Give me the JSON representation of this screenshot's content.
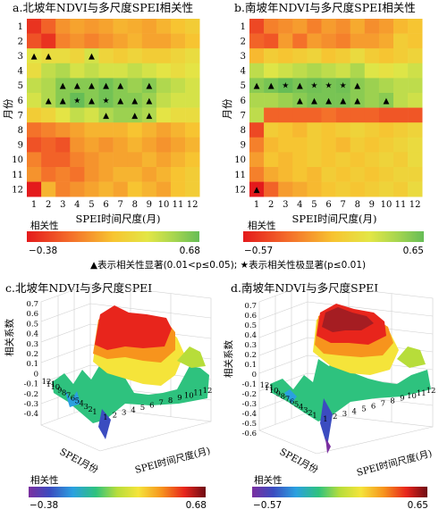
{
  "note": "▲表示相关性显著(0.01<p≤0.05); ★表示相关性极显著(p≤0.01)",
  "chart_data": [
    {
      "id": "a",
      "type": "heatmap",
      "title": "a.北坡年NDVI与多尺度SPEI相关性",
      "xlabel": "SPEI时间尺度(月)",
      "ylabel": "月份",
      "x": [
        "1",
        "2",
        "3",
        "4",
        "5",
        "6",
        "7",
        "8",
        "9",
        "10",
        "11",
        "12"
      ],
      "y": [
        "1",
        "2",
        "3",
        "4",
        "5",
        "6",
        "7",
        "8",
        "9",
        "10",
        "11",
        "12"
      ],
      "colorbar": {
        "label": "相关性",
        "min": -0.38,
        "max": 0.68,
        "min_label": "−0.38",
        "max_label": "0.68"
      },
      "values": [
        [
          -0.3,
          -0.15,
          0.0,
          0.05,
          0.02,
          0.05,
          0.1,
          0.08,
          0.05,
          0.1,
          0.15,
          0.2
        ],
        [
          -0.2,
          -0.3,
          -0.05,
          0.0,
          -0.05,
          0.0,
          0.05,
          0.1,
          0.05,
          0.05,
          0.1,
          0.15
        ],
        [
          0.35,
          0.3,
          0.3,
          0.25,
          0.4,
          0.25,
          0.2,
          0.25,
          0.2,
          0.2,
          0.25,
          0.3
        ],
        [
          0.3,
          0.45,
          0.5,
          0.4,
          0.45,
          0.4,
          0.4,
          0.45,
          0.4,
          0.35,
          0.3,
          0.35
        ],
        [
          0.45,
          0.5,
          0.6,
          0.6,
          0.6,
          0.65,
          0.6,
          0.55,
          0.6,
          0.5,
          0.45,
          0.4
        ],
        [
          0.4,
          0.5,
          0.6,
          0.68,
          0.6,
          0.65,
          0.6,
          0.6,
          0.55,
          0.45,
          0.4,
          0.4
        ],
        [
          0.2,
          0.25,
          0.35,
          0.45,
          0.4,
          0.5,
          0.55,
          0.55,
          0.5,
          0.35,
          0.3,
          0.3
        ],
        [
          -0.1,
          -0.05,
          0.0,
          0.05,
          0.1,
          0.1,
          0.1,
          0.15,
          0.1,
          0.05,
          0.1,
          0.15
        ],
        [
          -0.2,
          -0.15,
          -0.2,
          0.0,
          0.05,
          0.0,
          0.05,
          0.1,
          0.05,
          0.0,
          0.05,
          0.1
        ],
        [
          -0.05,
          -0.15,
          -0.15,
          -0.05,
          0.0,
          0.05,
          0.05,
          0.05,
          0.1,
          0.05,
          0.1,
          0.15
        ],
        [
          0.0,
          -0.1,
          -0.05,
          -0.1,
          0.0,
          0.05,
          0.1,
          0.1,
          0.05,
          0.1,
          0.15,
          0.2
        ],
        [
          -0.38,
          0.1,
          -0.05,
          0.0,
          0.05,
          0.1,
          0.05,
          0.15,
          0.1,
          0.05,
          0.15,
          0.2
        ]
      ],
      "markers": [
        {
          "month": "3",
          "scale": "1",
          "sym": "▲"
        },
        {
          "month": "3",
          "scale": "2",
          "sym": "▲"
        },
        {
          "month": "3",
          "scale": "5",
          "sym": "▲"
        },
        {
          "month": "5",
          "scale": "3",
          "sym": "▲"
        },
        {
          "month": "5",
          "scale": "4",
          "sym": "▲"
        },
        {
          "month": "5",
          "scale": "5",
          "sym": "▲"
        },
        {
          "month": "5",
          "scale": "6",
          "sym": "▲"
        },
        {
          "month": "5",
          "scale": "7",
          "sym": "▲"
        },
        {
          "month": "5",
          "scale": "9",
          "sym": "▲"
        },
        {
          "month": "6",
          "scale": "2",
          "sym": "▲"
        },
        {
          "month": "6",
          "scale": "3",
          "sym": "▲"
        },
        {
          "month": "6",
          "scale": "4",
          "sym": "★"
        },
        {
          "month": "6",
          "scale": "5",
          "sym": "▲"
        },
        {
          "month": "6",
          "scale": "6",
          "sym": "★"
        },
        {
          "month": "6",
          "scale": "7",
          "sym": "▲"
        },
        {
          "month": "6",
          "scale": "8",
          "sym": "▲"
        },
        {
          "month": "6",
          "scale": "9",
          "sym": "▲"
        },
        {
          "month": "7",
          "scale": "6",
          "sym": "▲"
        },
        {
          "month": "7",
          "scale": "8",
          "sym": "▲"
        },
        {
          "month": "7",
          "scale": "9",
          "sym": "▲"
        }
      ]
    },
    {
      "id": "b",
      "type": "heatmap",
      "title": "b.南坡年NDVI与多尺度SPEI相关性",
      "xlabel": "SPEI时间尺度(月)",
      "ylabel": "月份",
      "x": [
        "1",
        "2",
        "3",
        "4",
        "5",
        "6",
        "7",
        "8",
        "9",
        "10",
        "11",
        "12"
      ],
      "y": [
        "1",
        "2",
        "3",
        "4",
        "5",
        "6",
        "7",
        "8",
        "9",
        "10",
        "11",
        "12"
      ],
      "colorbar": {
        "label": "相关性",
        "min": -0.57,
        "max": 0.65,
        "min_label": "−0.57",
        "max_label": "0.65"
      },
      "values": [
        [
          -0.4,
          -0.2,
          -0.15,
          -0.1,
          -0.2,
          -0.1,
          -0.15,
          -0.05,
          -0.15,
          -0.1,
          0.0,
          0.05
        ],
        [
          -0.3,
          -0.35,
          -0.1,
          -0.25,
          -0.1,
          -0.15,
          -0.2,
          -0.1,
          -0.1,
          -0.05,
          0.1,
          0.05
        ],
        [
          0.0,
          0.1,
          0.05,
          0.1,
          0.15,
          0.05,
          0.1,
          0.2,
          0.1,
          0.05,
          0.1,
          0.15
        ],
        [
          0.4,
          0.3,
          0.35,
          0.4,
          0.45,
          0.4,
          0.35,
          0.45,
          0.3,
          0.25,
          0.3,
          0.35
        ],
        [
          0.55,
          0.6,
          0.65,
          0.6,
          0.62,
          0.6,
          0.62,
          0.55,
          0.5,
          0.45,
          0.4,
          0.4
        ],
        [
          0.45,
          0.45,
          0.5,
          0.55,
          0.6,
          0.6,
          0.6,
          0.55,
          0.5,
          0.55,
          0.4,
          0.35
        ],
        [
          0.4,
          -0.3,
          -0.3,
          -0.3,
          -0.3,
          -0.25,
          -0.3,
          -0.3,
          -0.3,
          -0.35,
          -0.35,
          -0.35
        ],
        [
          -0.4,
          0.1,
          0.05,
          0.0,
          0.1,
          0.05,
          0.1,
          0.15,
          0.1,
          0.05,
          0.1,
          0.15
        ],
        [
          -0.2,
          0.0,
          0.05,
          0.05,
          0.1,
          0.05,
          0.0,
          0.1,
          0.05,
          0.1,
          0.15,
          0.2
        ],
        [
          -0.1,
          0.05,
          0.0,
          0.05,
          0.1,
          0.05,
          0.1,
          0.05,
          0.1,
          0.15,
          0.1,
          0.2
        ],
        [
          -0.2,
          -0.05,
          0.0,
          0.05,
          0.0,
          0.1,
          0.05,
          0.1,
          0.05,
          0.1,
          0.15,
          0.15
        ],
        [
          -0.57,
          -0.3,
          -0.1,
          -0.05,
          0.0,
          0.05,
          0.1,
          0.05,
          0.1,
          0.15,
          0.1,
          0.2
        ]
      ],
      "markers": [
        {
          "month": "5",
          "scale": "1",
          "sym": "▲"
        },
        {
          "month": "5",
          "scale": "2",
          "sym": "▲"
        },
        {
          "month": "5",
          "scale": "3",
          "sym": "★"
        },
        {
          "month": "5",
          "scale": "4",
          "sym": "▲"
        },
        {
          "month": "5",
          "scale": "5",
          "sym": "★"
        },
        {
          "month": "5",
          "scale": "6",
          "sym": "★"
        },
        {
          "month": "5",
          "scale": "7",
          "sym": "★"
        },
        {
          "month": "5",
          "scale": "8",
          "sym": "▲"
        },
        {
          "month": "6",
          "scale": "4",
          "sym": "▲"
        },
        {
          "month": "6",
          "scale": "5",
          "sym": "▲"
        },
        {
          "month": "6",
          "scale": "6",
          "sym": "▲"
        },
        {
          "month": "6",
          "scale": "7",
          "sym": "▲"
        },
        {
          "month": "6",
          "scale": "8",
          "sym": "▲"
        },
        {
          "month": "6",
          "scale": "10",
          "sym": "▲"
        },
        {
          "month": "12",
          "scale": "1",
          "sym": "▲"
        }
      ]
    },
    {
      "id": "c",
      "type": "surface3d",
      "title": "c.北坡年NDVI与多尺度SPEI",
      "xlabel": "SPEI时间尺度(月)",
      "ylabel": "SPEI月份",
      "zlabel": "相关系数",
      "z_ticks": [
        "0.7",
        "0.6",
        "0.5",
        "0.4",
        "0.3",
        "0.2",
        "0.1",
        "0",
        "-0.1",
        "-0.2",
        "-0.3",
        "-0.4"
      ],
      "month_ticks": [
        "12",
        "11",
        "10",
        "9",
        "8",
        "7",
        "6",
        "5",
        "4",
        "3",
        "2",
        "1"
      ],
      "scale_ticks": [
        "1",
        "2",
        "3",
        "4",
        "5",
        "6",
        "7",
        "8",
        "9",
        "10",
        "11",
        "12"
      ],
      "colorbar": {
        "label": "相关性",
        "min": -0.38,
        "max": 0.68,
        "min_label": "−0.38",
        "max_label": "0.68"
      }
    },
    {
      "id": "d",
      "type": "surface3d",
      "title": "d.南坡年NDVI与多尺度SPEI",
      "xlabel": "SPEI时间尺度(月)",
      "ylabel": "SPEI月份",
      "zlabel": "相关系数",
      "z_ticks": [
        "0.7",
        "0.6",
        "0.5",
        "0.4",
        "0.3",
        "0.2",
        "0.1",
        "0",
        "-0.1",
        "-0.2",
        "-0.3",
        "-0.4",
        "-0.5",
        "-0.6"
      ],
      "month_ticks": [
        "12",
        "11",
        "10",
        "9",
        "8",
        "7",
        "6",
        "5",
        "4",
        "3",
        "2",
        "1"
      ],
      "scale_ticks": [
        "1",
        "2",
        "3",
        "4",
        "5",
        "6",
        "7",
        "8",
        "9",
        "10",
        "11",
        "12"
      ],
      "colorbar": {
        "label": "相关性",
        "min": -0.57,
        "max": 0.65,
        "min_label": "−0.57",
        "max_label": "0.65"
      }
    }
  ]
}
